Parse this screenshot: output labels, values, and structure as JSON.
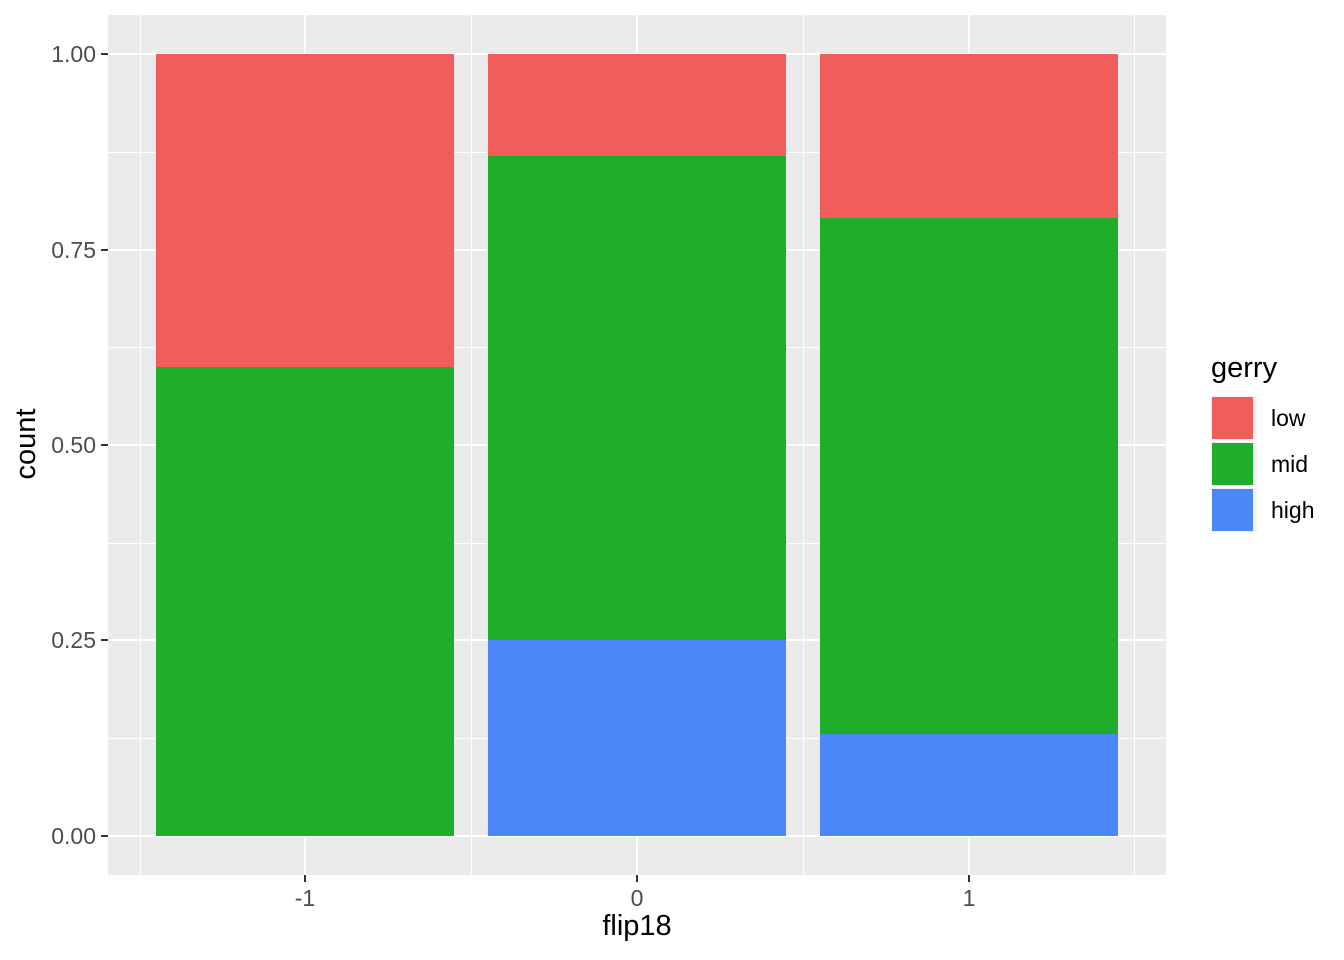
{
  "figure": {
    "background": "#FFFFFF",
    "panel_background": "#EBEBEB",
    "gridline_color": "#FFFFFF",
    "tick_label_color": "#4D4D4D",
    "tick_mark_color": "#333333",
    "axis_title_color": "#000000",
    "legend_key_background": "#F2F2F2"
  },
  "chart_data": {
    "type": "bar",
    "stacked": true,
    "normalized": true,
    "title": "",
    "xlabel": "flip18",
    "ylabel": "count",
    "categories": [
      "-1",
      "0",
      "1"
    ],
    "x_values": [
      -1,
      0,
      1
    ],
    "series": [
      {
        "name": "low",
        "color": "#F15D5B",
        "values": [
          0.4,
          0.13,
          0.21
        ]
      },
      {
        "name": "mid",
        "color": "#1FAD2C",
        "values": [
          0.6,
          0.62,
          0.66
        ]
      },
      {
        "name": "high",
        "color": "#4C87F8",
        "values": [
          0.0,
          0.25,
          0.13
        ]
      }
    ],
    "stack_order_bottom_to_top": [
      "high",
      "mid",
      "low"
    ],
    "bar_width": 0.9,
    "x_domain": [
      -1.595,
      1.595
    ],
    "y_domain": [
      -0.05,
      1.05
    ],
    "ylim": [
      0,
      1
    ],
    "grid": true,
    "legend_position": "right",
    "y_ticks": [
      {
        "v": 0.0,
        "label": "0.00"
      },
      {
        "v": 0.25,
        "label": "0.25"
      },
      {
        "v": 0.5,
        "label": "0.50"
      },
      {
        "v": 0.75,
        "label": "0.75"
      },
      {
        "v": 1.0,
        "label": "1.00"
      }
    ],
    "y_minor": [
      0.125,
      0.375,
      0.625,
      0.875
    ],
    "x_ticks": [
      {
        "v": -1,
        "label": "-1"
      },
      {
        "v": 0,
        "label": "0"
      },
      {
        "v": 1,
        "label": "1"
      }
    ],
    "x_minor": [
      -1.5,
      -0.5,
      0.5,
      1.5
    ],
    "legend": {
      "title": "gerry",
      "items": [
        {
          "label": "low"
        },
        {
          "label": "mid"
        },
        {
          "label": "high"
        }
      ]
    }
  }
}
